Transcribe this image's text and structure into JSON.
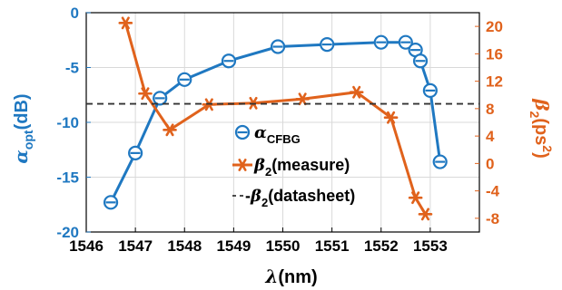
{
  "chart_data": {
    "type": "line",
    "xlabel_symbol": "λ",
    "xlabel_unit": "(nm)",
    "ylabel_left": {
      "symbol": "α",
      "sub": "opt",
      "unit": "(dB)"
    },
    "ylabel_right": {
      "symbol": "β",
      "sub": "2",
      "unit": "(ps",
      "sup": "2",
      "close": ")"
    },
    "xlim": [
      1546,
      1554
    ],
    "ylim_left": [
      -20,
      0
    ],
    "ylim_right": [
      -10,
      22
    ],
    "x_ticks": [
      1546,
      1547,
      1548,
      1549,
      1550,
      1551,
      1552,
      1553
    ],
    "y_ticks_left": [
      0,
      -5,
      -10,
      -15,
      -20
    ],
    "y_ticks_right": [
      20,
      16,
      12,
      8,
      4,
      0,
      -4,
      -8
    ],
    "grid": true,
    "colors": {
      "alpha": "#1f78c1",
      "beta": "#e0621c",
      "datasheet": "#333333",
      "grid": "#d9d9d9"
    },
    "series": [
      {
        "key": "alpha",
        "axis": "left",
        "marker": "circle",
        "x": [
          1546.5,
          1547.0,
          1547.5,
          1548.0,
          1548.9,
          1549.9,
          1550.9,
          1552.0,
          1552.5,
          1552.7,
          1552.8,
          1553.0,
          1553.2
        ],
        "y": [
          -17.3,
          -12.8,
          -7.8,
          -6.1,
          -4.4,
          -3.1,
          -2.9,
          -2.7,
          -2.7,
          -3.4,
          -4.4,
          -7.1,
          -13.6
        ]
      },
      {
        "key": "beta",
        "axis": "right",
        "marker": "asterisk",
        "x": [
          1546.8,
          1547.2,
          1547.7,
          1548.5,
          1549.4,
          1550.4,
          1551.5,
          1552.2,
          1552.7,
          1552.9
        ],
        "y": [
          20.5,
          10.2,
          4.9,
          8.6,
          8.8,
          9.4,
          10.4,
          6.7,
          -5.0,
          -7.4
        ]
      },
      {
        "key": "datasheet",
        "axis": "right",
        "style": "dashed",
        "x": [
          1546,
          1554
        ],
        "y": [
          8.7,
          8.7
        ]
      }
    ],
    "legend": {
      "placement": "bottom-right",
      "entries": [
        {
          "key": "alpha",
          "symbol": "α",
          "sub": "CFBG"
        },
        {
          "key": "beta",
          "prefix": "",
          "symbol": "β",
          "sub": "2",
          "text": "(measure)"
        },
        {
          "key": "datasheet",
          "prefix": "-",
          "symbol": "β",
          "sub": "2",
          "text": "(datasheet)"
        }
      ]
    }
  }
}
